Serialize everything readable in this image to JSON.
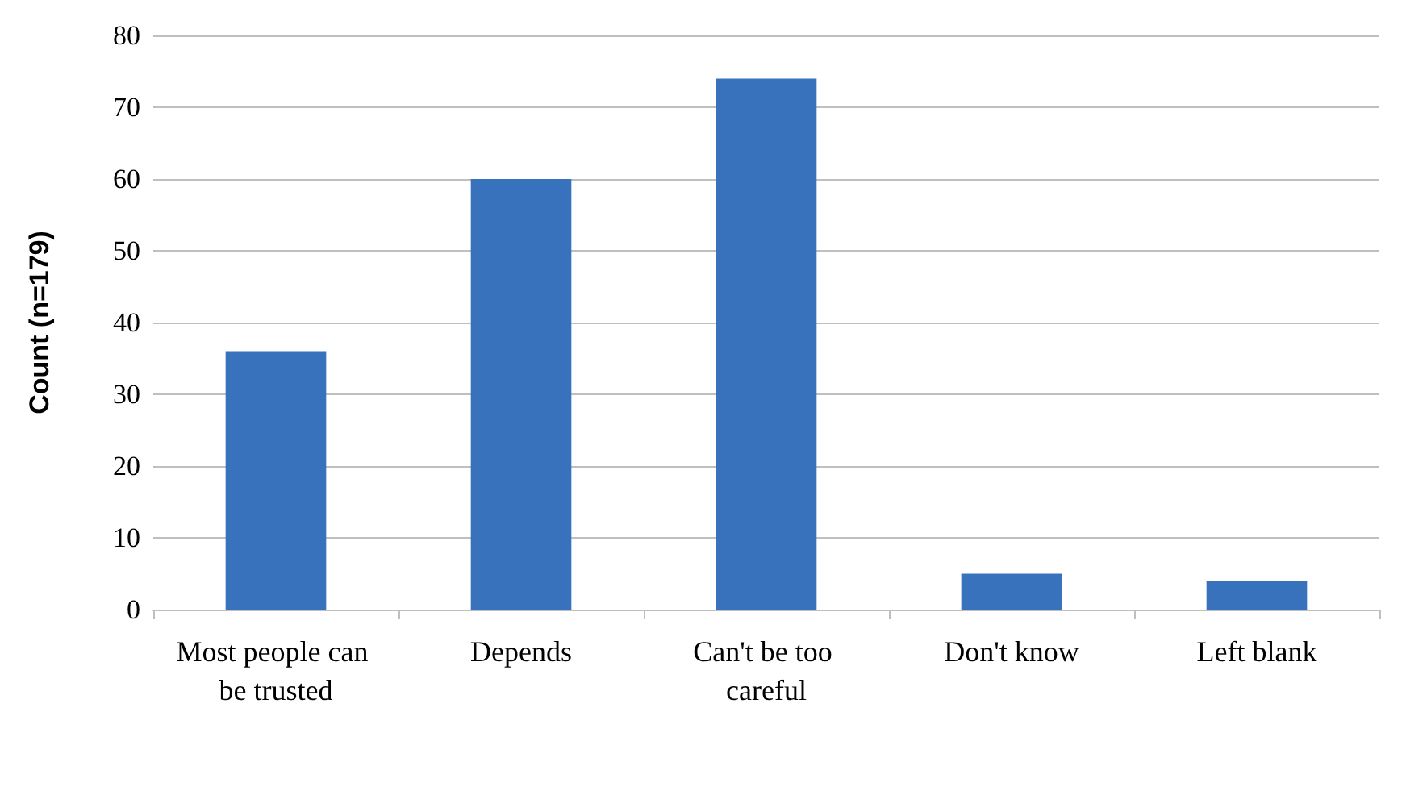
{
  "chart_data": {
    "type": "bar",
    "ylabel": "Count (n=179)",
    "categories": [
      "Most people can be trusted",
      "Depends",
      "Can't be too careful",
      "Don't know",
      "Left blank"
    ],
    "values": [
      36,
      60,
      74,
      5,
      4
    ],
    "color": "#3872bd",
    "ylim": [
      0,
      80
    ],
    "yticks": [
      0,
      10,
      20,
      30,
      40,
      50,
      60,
      70,
      80
    ],
    "grid": "y"
  }
}
